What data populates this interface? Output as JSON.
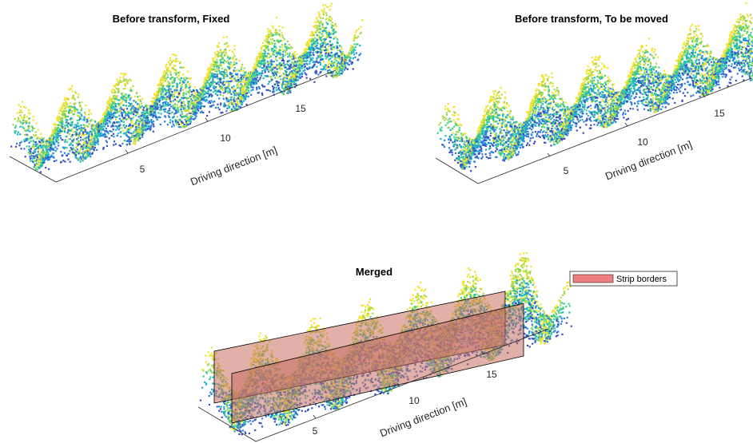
{
  "chart_data": [
    {
      "type": "scatter",
      "title": "Before transform, Fixed",
      "xlabel": "Driving direction [m]",
      "xticks": [
        "5",
        "10",
        "15"
      ],
      "xlim": [
        0,
        19
      ],
      "colormap": [
        "#3b4cc0",
        "#2f7fe0",
        "#1bb5c7",
        "#3fcf8a",
        "#a9d84a",
        "#f2e330"
      ],
      "strip_count": 5
    },
    {
      "type": "scatter",
      "title": "Before transform, To be moved",
      "xlabel": "Driving direction [m]",
      "xticks": [
        "5",
        "10",
        "15"
      ],
      "xlim": [
        0,
        19
      ],
      "colormap": [
        "#3b4cc0",
        "#2f7fe0",
        "#1bb5c7",
        "#3fcf8a",
        "#a9d84a",
        "#f2e330"
      ],
      "strip_count": 1
    },
    {
      "type": "scatter",
      "title": "Merged",
      "xlabel": "Driving direction [m]",
      "xticks": [
        "5",
        "10",
        "15"
      ],
      "xlim": [
        0,
        19
      ],
      "legend": {
        "label": "Strip borders",
        "color": "#f08080",
        "placement": "top-right"
      },
      "colormap": [
        "#3b4cc0",
        "#2f7fe0",
        "#1bb5c7",
        "#3fcf8a",
        "#a9d84a",
        "#f2e330"
      ],
      "border_color": "#c87060"
    }
  ]
}
